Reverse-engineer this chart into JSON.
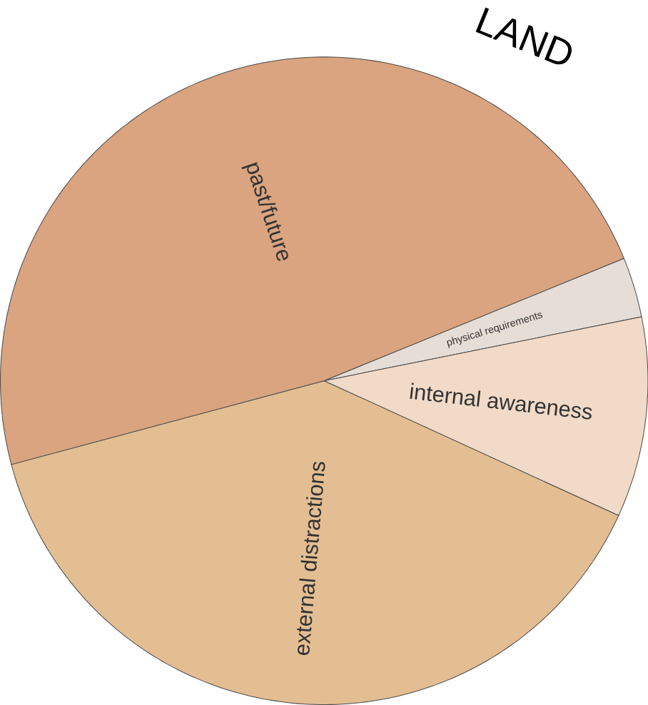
{
  "chart_data": {
    "type": "pie",
    "title": "LAND",
    "categories": [
      "past/future",
      "physical requirements",
      "internal awareness",
      "external distractions"
    ],
    "values": [
      48,
      3,
      10,
      39
    ],
    "colors": [
      "#d9a47f",
      "#e6ddd6",
      "#f1dac8",
      "#e3be93"
    ]
  }
}
